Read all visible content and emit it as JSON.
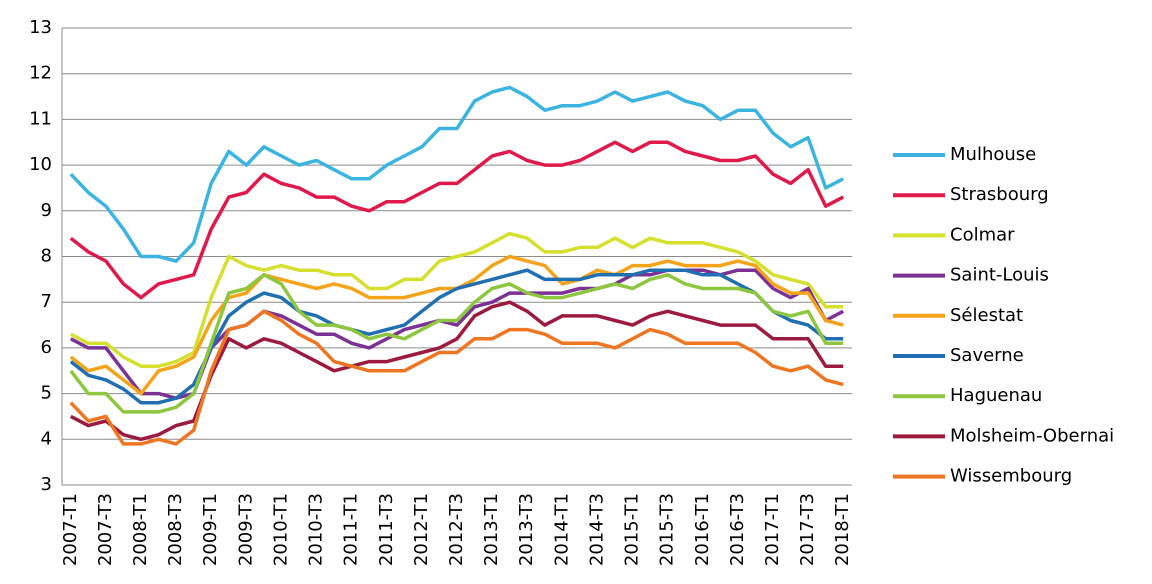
{
  "chart_data": {
    "type": "line",
    "categories": [
      "2007-T1",
      null,
      "2007-T3",
      null,
      "2008-T1",
      null,
      "2008-T3",
      null,
      "2009-T1",
      null,
      "2009-T3",
      null,
      "2010-T1",
      null,
      "2010-T3",
      null,
      "2011-T1",
      null,
      "2011-T3",
      null,
      "2012-T1",
      null,
      "2012-T3",
      null,
      "2013-T1",
      null,
      "2013-T3",
      null,
      "2014-T1",
      null,
      "2014-T3",
      null,
      "2015-T1",
      null,
      "2015-T3",
      null,
      "2016-T1",
      null,
      "2016-T3",
      null,
      "2017-T1",
      null,
      "2017-T3",
      null,
      "2018-T1"
    ],
    "ylim": [
      3,
      13
    ],
    "yticks": [
      3,
      4,
      5,
      6,
      7,
      8,
      9,
      10,
      11,
      12,
      13
    ],
    "grid": true,
    "legend": "right",
    "series": [
      {
        "name": "Mulhouse",
        "color": "#3cb4e2",
        "values": [
          9.8,
          9.4,
          9.1,
          8.6,
          8.0,
          8.0,
          7.9,
          8.3,
          9.6,
          10.3,
          10.0,
          10.4,
          10.2,
          10.0,
          10.1,
          9.9,
          9.7,
          9.7,
          10.0,
          10.2,
          10.4,
          10.8,
          10.8,
          11.4,
          11.6,
          11.7,
          11.5,
          11.2,
          11.3,
          11.3,
          11.4,
          11.6,
          11.4,
          11.5,
          11.6,
          11.4,
          11.3,
          11.0,
          11.2,
          11.2,
          10.7,
          10.4,
          10.6,
          9.5,
          9.7
        ]
      },
      {
        "name": "Strasbourg",
        "color": "#e0194b",
        "values": [
          8.4,
          8.1,
          7.9,
          7.4,
          7.1,
          7.4,
          7.5,
          7.6,
          8.6,
          9.3,
          9.4,
          9.8,
          9.6,
          9.5,
          9.3,
          9.3,
          9.1,
          9.0,
          9.2,
          9.2,
          9.4,
          9.6,
          9.6,
          9.9,
          10.2,
          10.3,
          10.1,
          10.0,
          10.0,
          10.1,
          10.3,
          10.5,
          10.3,
          10.5,
          10.5,
          10.3,
          10.2,
          10.1,
          10.1,
          10.2,
          9.8,
          9.6,
          9.9,
          9.1,
          9.3
        ]
      },
      {
        "name": "Colmar",
        "color": "#d4e02d",
        "values": [
          6.3,
          6.1,
          6.1,
          5.8,
          5.6,
          5.6,
          5.7,
          5.9,
          7.1,
          8.0,
          7.8,
          7.7,
          7.8,
          7.7,
          7.7,
          7.6,
          7.6,
          7.3,
          7.3,
          7.5,
          7.5,
          7.9,
          8.0,
          8.1,
          8.3,
          8.5,
          8.4,
          8.1,
          8.1,
          8.2,
          8.2,
          8.4,
          8.2,
          8.4,
          8.3,
          8.3,
          8.3,
          8.2,
          8.1,
          7.9,
          7.6,
          7.5,
          7.4,
          6.9,
          6.9
        ]
      },
      {
        "name": "Saint-Louis",
        "color": "#7b3294",
        "values": [
          6.2,
          6.0,
          6.0,
          5.5,
          5.0,
          5.0,
          4.9,
          5.0,
          6.0,
          6.4,
          6.5,
          6.8,
          6.7,
          6.5,
          6.3,
          6.3,
          6.1,
          6.0,
          6.2,
          6.4,
          6.5,
          6.6,
          6.5,
          6.9,
          7.0,
          7.2,
          7.2,
          7.2,
          7.2,
          7.3,
          7.3,
          7.4,
          7.6,
          7.6,
          7.7,
          7.7,
          7.7,
          7.6,
          7.7,
          7.7,
          7.3,
          7.1,
          7.3,
          6.6,
          6.8
        ]
      },
      {
        "name": "Sélestat",
        "color": "#f5a31a",
        "values": [
          5.8,
          5.5,
          5.6,
          5.3,
          5.0,
          5.5,
          5.6,
          5.8,
          6.6,
          7.1,
          7.2,
          7.6,
          7.5,
          7.4,
          7.3,
          7.4,
          7.3,
          7.1,
          7.1,
          7.1,
          7.2,
          7.3,
          7.3,
          7.5,
          7.8,
          8.0,
          7.9,
          7.8,
          7.4,
          7.5,
          7.7,
          7.6,
          7.8,
          7.8,
          7.9,
          7.8,
          7.8,
          7.8,
          7.9,
          7.8,
          7.4,
          7.2,
          7.2,
          6.6,
          6.5
        ]
      },
      {
        "name": "Saverne",
        "color": "#1f6fb2",
        "values": [
          5.7,
          5.4,
          5.3,
          5.1,
          4.8,
          4.8,
          4.9,
          5.2,
          6.0,
          6.7,
          7.0,
          7.2,
          7.1,
          6.8,
          6.7,
          6.5,
          6.4,
          6.3,
          6.4,
          6.5,
          6.8,
          7.1,
          7.3,
          7.4,
          7.5,
          7.6,
          7.7,
          7.5,
          7.5,
          7.5,
          7.6,
          7.6,
          7.6,
          7.7,
          7.7,
          7.7,
          7.6,
          7.6,
          7.4,
          7.2,
          6.8,
          6.6,
          6.5,
          6.2,
          6.2
        ]
      },
      {
        "name": "Haguenau",
        "color": "#8dc63f",
        "values": [
          5.5,
          5.0,
          5.0,
          4.6,
          4.6,
          4.6,
          4.7,
          5.0,
          6.1,
          7.2,
          7.3,
          7.6,
          7.4,
          6.8,
          6.5,
          6.5,
          6.4,
          6.2,
          6.3,
          6.2,
          6.4,
          6.6,
          6.6,
          7.0,
          7.3,
          7.4,
          7.2,
          7.1,
          7.1,
          7.2,
          7.3,
          7.4,
          7.3,
          7.5,
          7.6,
          7.4,
          7.3,
          7.3,
          7.3,
          7.2,
          6.8,
          6.7,
          6.8,
          6.1,
          6.1
        ]
      },
      {
        "name": "Molsheim-Obernai",
        "color": "#9c1a3e",
        "values": [
          4.5,
          4.3,
          4.4,
          4.1,
          4.0,
          4.1,
          4.3,
          4.4,
          5.4,
          6.2,
          6.0,
          6.2,
          6.1,
          5.9,
          5.7,
          5.5,
          5.6,
          5.7,
          5.7,
          5.8,
          5.9,
          6.0,
          6.2,
          6.7,
          6.9,
          7.0,
          6.8,
          6.5,
          6.7,
          6.7,
          6.7,
          6.6,
          6.5,
          6.7,
          6.8,
          6.7,
          6.6,
          6.5,
          6.5,
          6.5,
          6.2,
          6.2,
          6.2,
          5.6,
          5.6
        ]
      },
      {
        "name": "Wissembourg",
        "color": "#ee7623",
        "values": [
          4.8,
          4.4,
          4.5,
          3.9,
          3.9,
          4.0,
          3.9,
          4.2,
          5.5,
          6.4,
          6.5,
          6.8,
          6.6,
          6.3,
          6.1,
          5.7,
          5.6,
          5.5,
          5.5,
          5.5,
          5.7,
          5.9,
          5.9,
          6.2,
          6.2,
          6.4,
          6.4,
          6.3,
          6.1,
          6.1,
          6.1,
          6.0,
          6.2,
          6.4,
          6.3,
          6.1,
          6.1,
          6.1,
          6.1,
          5.9,
          5.6,
          5.5,
          5.6,
          5.3,
          5.2
        ]
      }
    ]
  }
}
